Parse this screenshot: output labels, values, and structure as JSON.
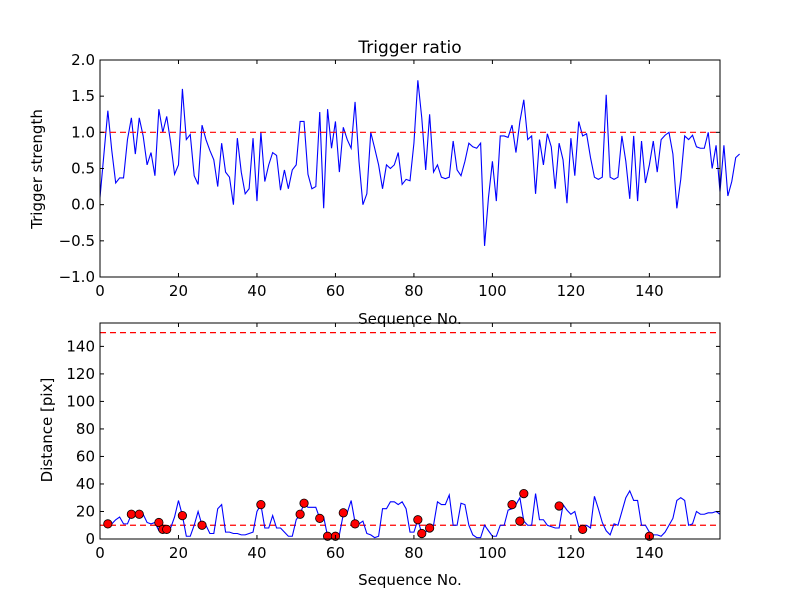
{
  "chart_data": [
    {
      "type": "line",
      "title": "Trigger ratio",
      "xlabel": "Sequence No.",
      "ylabel": "Trigger strength",
      "xlim": [
        0,
        158
      ],
      "ylim": [
        -1.0,
        2.0
      ],
      "xticks": [
        0,
        20,
        40,
        60,
        80,
        100,
        120,
        140
      ],
      "xtick_labels": [
        "0",
        "20",
        "40",
        "60",
        "80",
        "100",
        "120",
        "140"
      ],
      "yticks": [
        -1.0,
        -0.5,
        0.0,
        0.5,
        1.0,
        1.5,
        2.0
      ],
      "ytick_labels": [
        "−1.0",
        "−0.5",
        "0.0",
        "0.5",
        "1.0",
        "1.5",
        "2.0"
      ],
      "grid": false,
      "line_color": "#0000ff",
      "threshold_color": "#ff0000",
      "threshold_lines": [
        1.0
      ],
      "x_start": 0,
      "values": [
        0.1,
        0.7,
        1.3,
        0.75,
        0.3,
        0.37,
        0.37,
        0.9,
        1.2,
        0.7,
        1.2,
        0.95,
        0.55,
        0.72,
        0.4,
        1.32,
        1.0,
        1.22,
        0.86,
        0.42,
        0.55,
        1.6,
        0.9,
        0.97,
        0.4,
        0.28,
        1.1,
        0.9,
        0.75,
        0.62,
        0.25,
        0.85,
        0.45,
        0.38,
        0.0,
        0.92,
        0.45,
        0.15,
        0.22,
        0.92,
        0.05,
        1.0,
        0.32,
        0.55,
        0.72,
        0.68,
        0.2,
        0.48,
        0.22,
        0.48,
        0.55,
        1.15,
        1.15,
        0.42,
        0.22,
        0.25,
        1.28,
        -0.05,
        1.32,
        0.78,
        1.15,
        0.45,
        1.07,
        0.9,
        0.78,
        1.42,
        0.6,
        0.0,
        0.15,
        1.0,
        0.78,
        0.55,
        0.22,
        0.55,
        0.5,
        0.55,
        0.72,
        0.28,
        0.35,
        0.33,
        0.85,
        1.72,
        1.2,
        0.48,
        1.25,
        0.45,
        0.55,
        0.38,
        0.36,
        0.38,
        0.88,
        0.48,
        0.4,
        0.6,
        0.85,
        0.8,
        0.78,
        0.85,
        -0.57,
        0.1,
        0.6,
        0.05,
        0.95,
        0.95,
        0.93,
        1.1,
        0.72,
        1.15,
        1.45,
        0.9,
        0.95,
        0.15,
        0.9,
        0.55,
        0.98,
        0.8,
        0.22,
        0.85,
        0.62,
        0.02,
        0.92,
        0.4,
        1.15,
        0.95,
        0.98,
        0.65,
        0.38,
        0.35,
        0.38,
        1.52,
        0.38,
        0.35,
        0.38,
        0.95,
        0.6,
        0.08,
        0.95,
        0.05,
        0.88,
        0.3,
        0.55,
        0.88,
        0.45,
        0.9,
        0.96,
        1.0,
        0.7,
        -0.05,
        0.35,
        0.95,
        0.9,
        0.96,
        0.8,
        0.78,
        0.78,
        1.0,
        0.5,
        0.82,
        0.18,
        0.82,
        0.12,
        0.32,
        0.65,
        0.7
      ]
    },
    {
      "type": "line",
      "title": "",
      "xlabel": "Sequence No.",
      "ylabel": "Distance [pix]",
      "xlim": [
        0,
        158
      ],
      "ylim": [
        0,
        157
      ],
      "xticks": [
        0,
        20,
        40,
        60,
        80,
        100,
        120,
        140
      ],
      "xtick_labels": [
        "0",
        "20",
        "40",
        "60",
        "80",
        "100",
        "120",
        "140"
      ],
      "yticks": [
        0,
        20,
        40,
        60,
        80,
        100,
        120,
        140
      ],
      "ytick_labels": [
        "0",
        "20",
        "40",
        "60",
        "80",
        "100",
        "120",
        "140"
      ],
      "grid": false,
      "line_color": "#0000ff",
      "marker_color": "#ff0000",
      "threshold_color": "#ff0000",
      "threshold_lines": [
        150,
        10
      ],
      "x_start": 1,
      "values": [
        11,
        10,
        11,
        14,
        16,
        11,
        11,
        18,
        18,
        18,
        18,
        12,
        11,
        12,
        6,
        7,
        6,
        8,
        16,
        28,
        17,
        2,
        2,
        10,
        20,
        10,
        10,
        4,
        4,
        22,
        25,
        5,
        5,
        4,
        4,
        3,
        3,
        4,
        5,
        20,
        25,
        8,
        8,
        17,
        8,
        8,
        5,
        2,
        2,
        14,
        18,
        26,
        23,
        23,
        23,
        15,
        16,
        2,
        2,
        2,
        3,
        18,
        19,
        28,
        12,
        11,
        13,
        4,
        3,
        1,
        2,
        22,
        22,
        27,
        27,
        25,
        27,
        22,
        5,
        5,
        14,
        4,
        5,
        8,
        10,
        27,
        25,
        25,
        32,
        10,
        10,
        26,
        25,
        10,
        3,
        1,
        1,
        10,
        6,
        2,
        2,
        10,
        10,
        21,
        22,
        25,
        30,
        13,
        10,
        10,
        33,
        14,
        14,
        10,
        9,
        8,
        8,
        25,
        21,
        18,
        20,
        9,
        8,
        10,
        8,
        31,
        22,
        12,
        6,
        3,
        11,
        10,
        20,
        30,
        35,
        28,
        28,
        10,
        10,
        5,
        3,
        3,
        2,
        5,
        10,
        15,
        28,
        30,
        28,
        10,
        11,
        20,
        18,
        18,
        19,
        19,
        20,
        18
      ],
      "markers": [
        {
          "x": 2,
          "y": 11
        },
        {
          "x": 8,
          "y": 18
        },
        {
          "x": 10,
          "y": 18
        },
        {
          "x": 15,
          "y": 12
        },
        {
          "x": 16,
          "y": 7
        },
        {
          "x": 17,
          "y": 7
        },
        {
          "x": 21,
          "y": 17
        },
        {
          "x": 26,
          "y": 10
        },
        {
          "x": 41,
          "y": 25
        },
        {
          "x": 51,
          "y": 18
        },
        {
          "x": 52,
          "y": 26
        },
        {
          "x": 56,
          "y": 15
        },
        {
          "x": 58,
          "y": 2
        },
        {
          "x": 60,
          "y": 2
        },
        {
          "x": 62,
          "y": 19
        },
        {
          "x": 65,
          "y": 11
        },
        {
          "x": 81,
          "y": 14
        },
        {
          "x": 82,
          "y": 4
        },
        {
          "x": 84,
          "y": 8
        },
        {
          "x": 105,
          "y": 25
        },
        {
          "x": 107,
          "y": 13
        },
        {
          "x": 108,
          "y": 33
        },
        {
          "x": 117,
          "y": 24
        },
        {
          "x": 123,
          "y": 7
        },
        {
          "x": 140,
          "y": 2
        }
      ]
    }
  ]
}
